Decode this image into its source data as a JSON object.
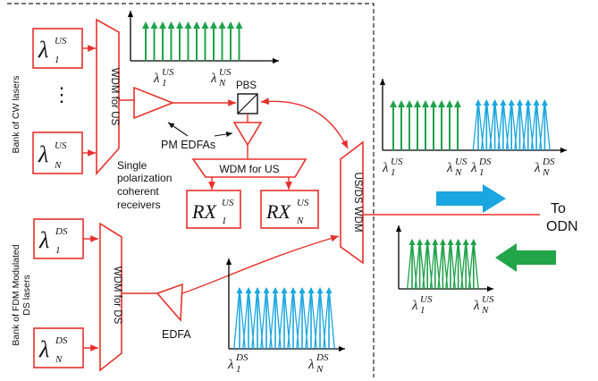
{
  "labels": {
    "bank_cw": "Bank of CW lasers",
    "bank_ds_1": "Bank of FDM Modulated",
    "bank_ds_2": "DS lasers",
    "wdm_us_left": "WDM for US",
    "wdm_us_mid": "WDM for US",
    "wdm_ds": "WDM for DS",
    "usds_wdm": "US/DS WDM",
    "pbs": "PBS",
    "pm_edfas": "PM EDFAs",
    "edfa": "EDFA",
    "receivers_line1": "Single",
    "receivers_line2": "polarization",
    "receivers_line3": "coherent",
    "receivers_line4": "receivers",
    "to": "To",
    "odn": "ODN",
    "dots": "⋮"
  },
  "math": {
    "lambda": "λ",
    "rx": "RX",
    "first": "1",
    "last": "N",
    "us": "US",
    "ds": "DS"
  },
  "colors": {
    "red": "#e8302a",
    "green": "#1fa24a",
    "blue": "#1aa6e0",
    "arrow_blue": "#1aa6e0",
    "arrow_green": "#22a448"
  }
}
